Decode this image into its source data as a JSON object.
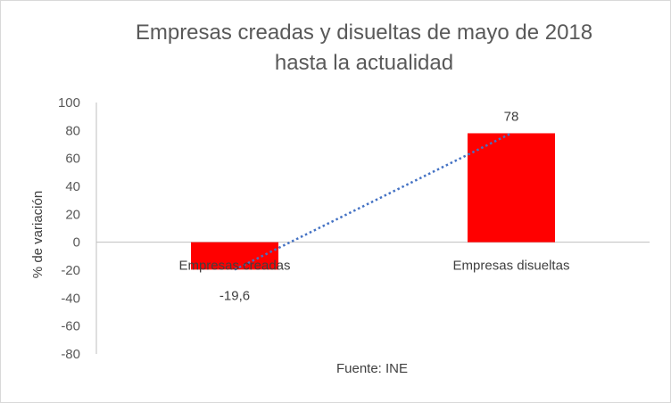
{
  "chart_data": {
    "type": "bar",
    "title_lines": [
      "Empresas creadas y disueltas de mayo de 2018",
      "hasta la actualidad"
    ],
    "categories": [
      "Empresas creadas",
      "Empresas disueltas"
    ],
    "values": [
      -19.6,
      78
    ],
    "data_labels": [
      "-19,6",
      "78"
    ],
    "ylabel": "% de variación",
    "xlabel": "Fuente: INE",
    "ylim": [
      -80,
      100
    ],
    "yticks": [
      100,
      80,
      60,
      40,
      20,
      0,
      -20,
      -40,
      -60,
      -80
    ],
    "grid": false,
    "trendline": "linear",
    "colors": {
      "bar": "#ff0000",
      "trendline": "#4472c4",
      "axis": "#bfbfbf"
    }
  }
}
